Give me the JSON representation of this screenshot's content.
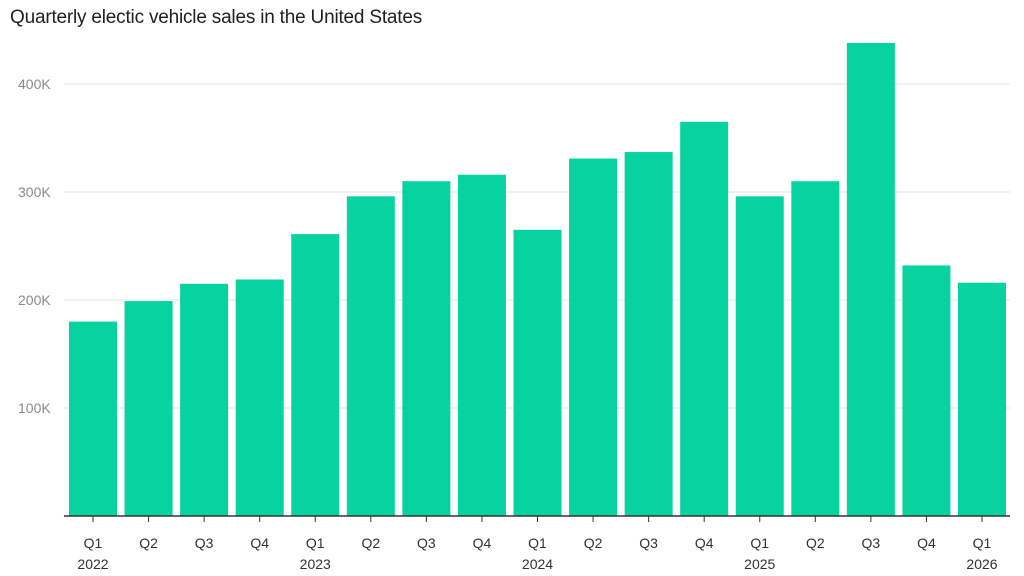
{
  "chart_data": {
    "type": "bar",
    "title": "Quarterly electic vehicle sales in the United States",
    "xlabel": "",
    "ylabel": "",
    "categories": [
      "Q1",
      "Q2",
      "Q3",
      "Q4",
      "Q1",
      "Q2",
      "Q3",
      "Q4",
      "Q1",
      "Q2",
      "Q3",
      "Q4",
      "Q1",
      "Q2",
      "Q3",
      "Q4",
      "Q1"
    ],
    "years": [
      {
        "label": "2022",
        "category_index": 0
      },
      {
        "label": "2023",
        "category_index": 4
      },
      {
        "label": "2024",
        "category_index": 8
      },
      {
        "label": "2025",
        "category_index": 12
      },
      {
        "label": "2026",
        "category_index": 16
      }
    ],
    "values": [
      180000,
      199000,
      215000,
      219000,
      261000,
      296000,
      310000,
      316000,
      265000,
      331000,
      337000,
      365000,
      296000,
      310000,
      438000,
      232000,
      216000
    ],
    "ylim": [
      0,
      450000
    ],
    "yticks": [
      {
        "value": 100000,
        "label": "100K"
      },
      {
        "value": 200000,
        "label": "200K"
      },
      {
        "value": 300000,
        "label": "300K"
      },
      {
        "value": 400000,
        "label": "400K"
      }
    ],
    "bar_color": "#06d3a0",
    "grid": true,
    "legend": "none"
  }
}
